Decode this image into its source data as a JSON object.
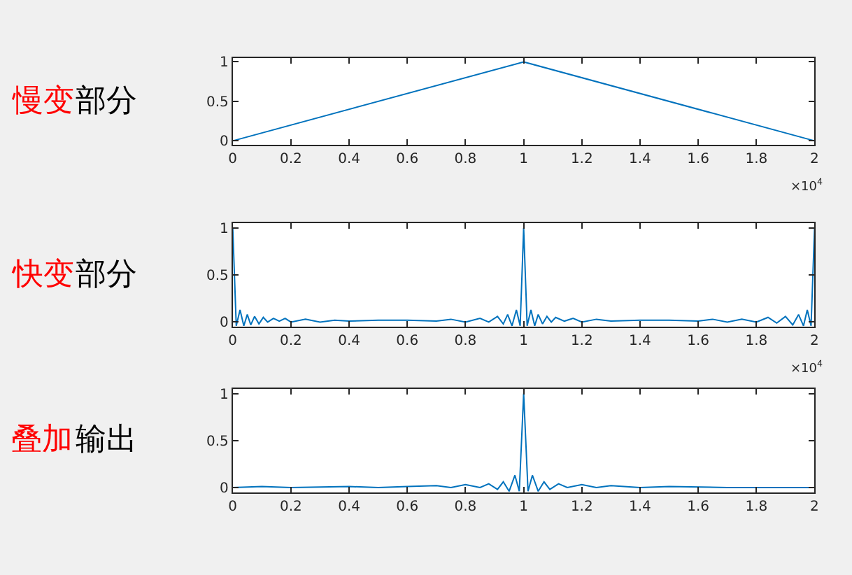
{
  "chart_data": [
    {
      "type": "line",
      "annotations": [
        "慢变",
        "部分",
        "×10$^{4}$"
      ],
      "x": [
        0,
        1,
        2
      ],
      "series": [
        {
          "color": "#0072bd",
          "values": [
            0,
            1,
            0
          ]
        }
      ],
      "xlim": [
        0,
        2
      ],
      "xticks": [
        0,
        0.2,
        0.4,
        0.6,
        0.8,
        1,
        1.2,
        1.4,
        1.6,
        1.8,
        2
      ],
      "ylim": [
        -0.05,
        1.05
      ],
      "yticks": [
        0,
        0.5,
        1
      ]
    },
    {
      "type": "line",
      "annotations": [
        "快变",
        "部分",
        "×10$^{4}$"
      ],
      "x": [
        0,
        0.012,
        0.025,
        0.038,
        0.05,
        0.062,
        0.075,
        0.09,
        0.105,
        0.12,
        0.14,
        0.16,
        0.18,
        0.2,
        0.25,
        0.3,
        0.35,
        0.4,
        0.5,
        0.6,
        0.7,
        0.75,
        0.8,
        0.85,
        0.88,
        0.91,
        0.93,
        0.945,
        0.96,
        0.975,
        0.988,
        1,
        1.012,
        1.025,
        1.038,
        1.05,
        1.065,
        1.08,
        1.095,
        1.11,
        1.14,
        1.17,
        1.2,
        1.25,
        1.3,
        1.4,
        1.5,
        1.6,
        1.65,
        1.7,
        1.75,
        1.8,
        1.84,
        1.87,
        1.9,
        1.925,
        1.945,
        1.962,
        1.975,
        1.988,
        2
      ],
      "series": [
        {
          "color": "#0072bd",
          "values": [
            1,
            -0.04,
            0.13,
            -0.04,
            0.08,
            -0.03,
            0.06,
            -0.02,
            0.05,
            0,
            0.04,
            0.01,
            0.04,
            0,
            0.03,
            0,
            0.02,
            0.01,
            0.02,
            0.02,
            0.01,
            0.03,
            0,
            0.04,
            0,
            0.06,
            -0.02,
            0.08,
            -0.04,
            0.13,
            -0.04,
            1,
            -0.04,
            0.13,
            -0.04,
            0.08,
            -0.02,
            0.06,
            0,
            0.05,
            0.01,
            0.04,
            0,
            0.03,
            0.01,
            0.02,
            0.02,
            0.01,
            0.03,
            0,
            0.03,
            0,
            0.05,
            -0.01,
            0.06,
            -0.03,
            0.08,
            -0.04,
            0.13,
            -0.04,
            1
          ]
        }
      ],
      "xlim": [
        0,
        2
      ],
      "xticks": [
        0,
        0.2,
        0.4,
        0.6,
        0.8,
        1,
        1.2,
        1.4,
        1.6,
        1.8,
        2
      ],
      "ylim": [
        -0.05,
        1.05
      ],
      "yticks": [
        0,
        0.5,
        1
      ]
    },
    {
      "type": "line",
      "annotations": [
        "叠加",
        "输出"
      ],
      "x": [
        0,
        0.1,
        0.2,
        0.4,
        0.5,
        0.6,
        0.7,
        0.75,
        0.8,
        0.85,
        0.88,
        0.91,
        0.93,
        0.95,
        0.97,
        0.985,
        1,
        1.015,
        1.03,
        1.05,
        1.07,
        1.09,
        1.12,
        1.15,
        1.2,
        1.25,
        1.3,
        1.4,
        1.5,
        1.7,
        2
      ],
      "series": [
        {
          "color": "#0072bd",
          "values": [
            0,
            0.01,
            0,
            0.01,
            0,
            0.01,
            0.02,
            0,
            0.03,
            0,
            0.04,
            -0.02,
            0.06,
            -0.04,
            0.13,
            -0.04,
            1,
            -0.04,
            0.13,
            -0.04,
            0.06,
            -0.02,
            0.04,
            0,
            0.03,
            0,
            0.02,
            0,
            0.01,
            0,
            0
          ]
        }
      ],
      "xlim": [
        0,
        2
      ],
      "xticks": [
        0,
        0.2,
        0.4,
        0.6,
        0.8,
        1,
        1.2,
        1.4,
        1.6,
        1.8,
        2
      ],
      "ylim": [
        -0.05,
        1.05
      ],
      "yticks": [
        0,
        0.5,
        1
      ]
    }
  ]
}
